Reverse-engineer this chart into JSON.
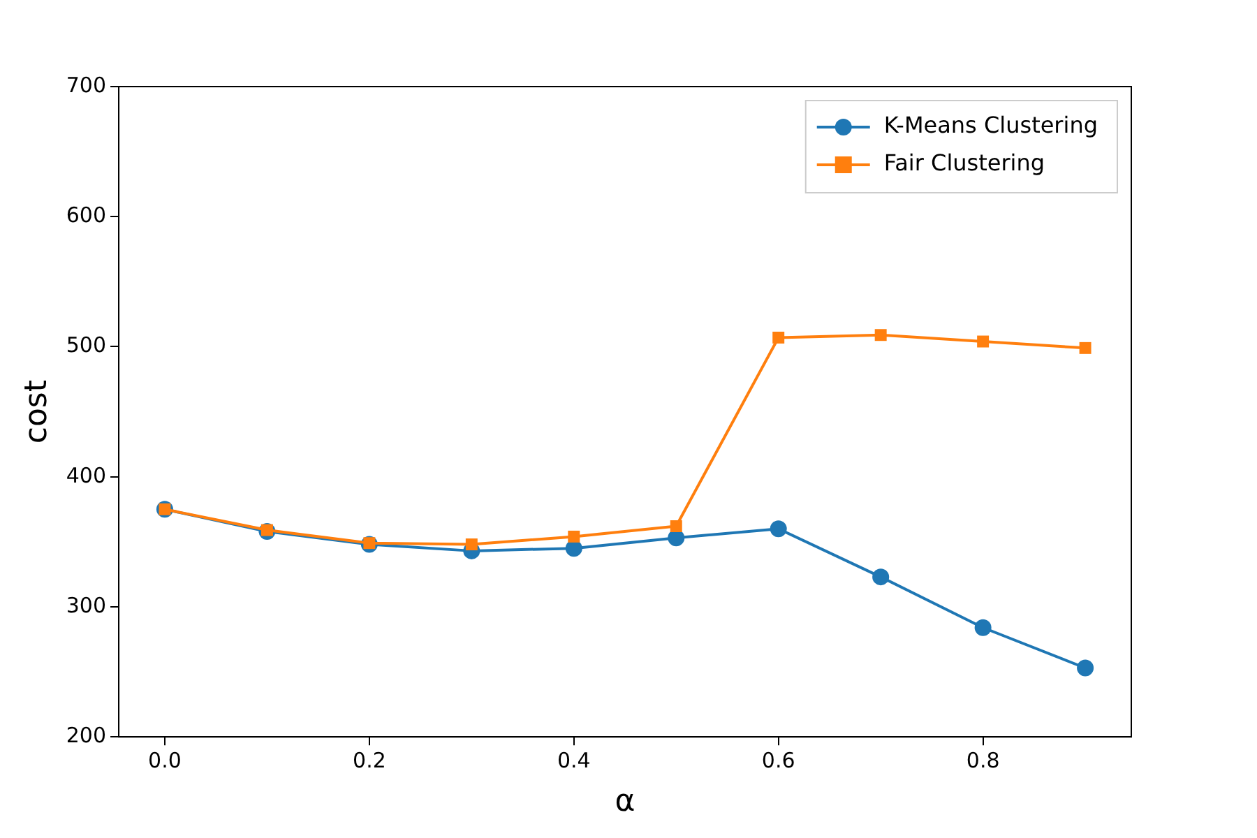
{
  "chart_data": {
    "type": "line",
    "xlabel": "α",
    "ylabel": "cost",
    "x": [
      0,
      0.1,
      0.2,
      0.3,
      0.4,
      0.5,
      0.6,
      0.7,
      0.8,
      0.9
    ],
    "series": [
      {
        "name": "K-Means Clustering",
        "color": "#1f77b4",
        "marker": "circle",
        "values": [
          375,
          358,
          348,
          343,
          345,
          353,
          360,
          323,
          284,
          253
        ]
      },
      {
        "name": "Fair Clustering",
        "color": "#ff7f0e",
        "marker": "square",
        "values": [
          375,
          359,
          349,
          348,
          354,
          362,
          507,
          509,
          504,
          499
        ]
      }
    ],
    "xlim": [
      -0.045,
      0.945
    ],
    "xticks": [
      {
        "value": 0,
        "label": "0.0"
      },
      {
        "value": 0.2,
        "label": "0.2"
      },
      {
        "value": 0.4,
        "label": "0.4"
      },
      {
        "value": 0.6,
        "label": "0.6"
      },
      {
        "value": 0.8,
        "label": "0.8"
      }
    ],
    "ylim": [
      200,
      700
    ],
    "yticks": [
      200,
      300,
      400,
      500,
      600,
      700
    ],
    "grid": false,
    "legend": "top right",
    "line_style": "solid"
  }
}
